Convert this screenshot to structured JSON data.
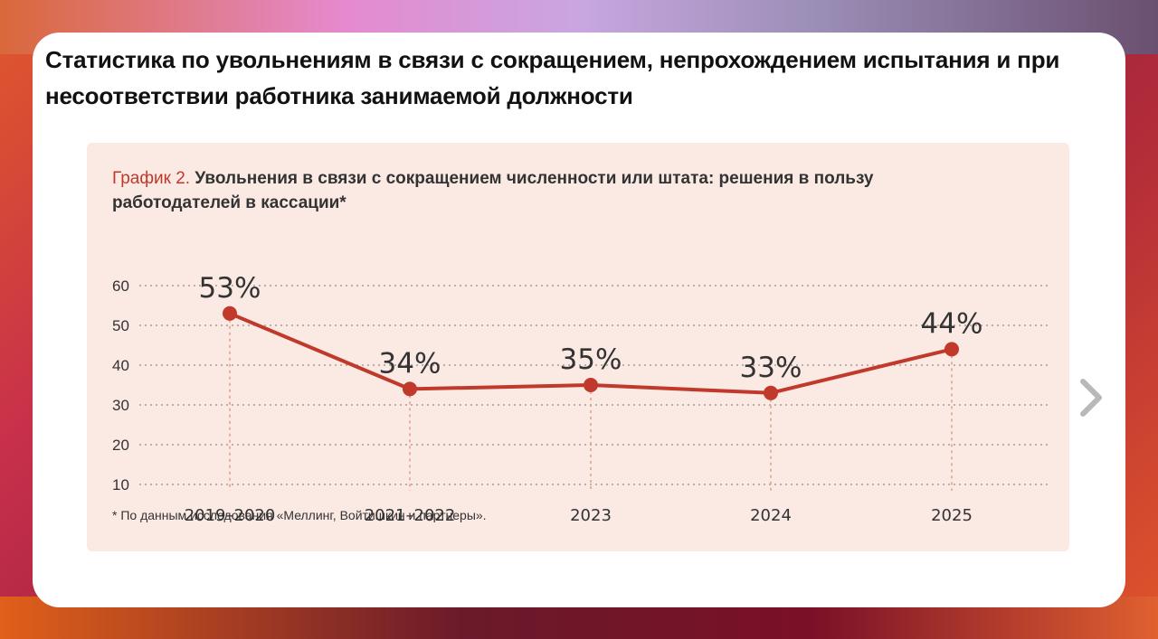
{
  "page_title": "Статистика по увольнениям в связи с сокращением, непрохождением испытания и при несоответствии работника занимаемой должности",
  "chart_heading_label": "График 2.",
  "chart_heading_text": "Увольнения в связи с сокращением численности или штата: решения в пользу работодателей в кассации*",
  "footnote": "* По данным исследования «Меллинг, Войтишкин и партнеры».",
  "nav": {
    "icon": "chevron-right-icon"
  },
  "colors": {
    "accent": "#c0392b",
    "panel_bg": "#fbe9e3"
  },
  "chart_data": {
    "type": "line",
    "title": "Увольнения в связи с сокращением численности или штата: решения в пользу работодателей в кассации*",
    "categories": [
      "2019–2020",
      "2021–2022",
      "2023",
      "2024",
      "2025"
    ],
    "values": [
      53,
      34,
      35,
      33,
      44
    ],
    "data_labels": [
      "53%",
      "34%",
      "35%",
      "33%",
      "44%"
    ],
    "yticks": [
      10,
      20,
      30,
      40,
      50,
      60
    ],
    "ylim": [
      0,
      60
    ],
    "grid": true,
    "legend": "none",
    "xlabel": "",
    "ylabel": ""
  }
}
